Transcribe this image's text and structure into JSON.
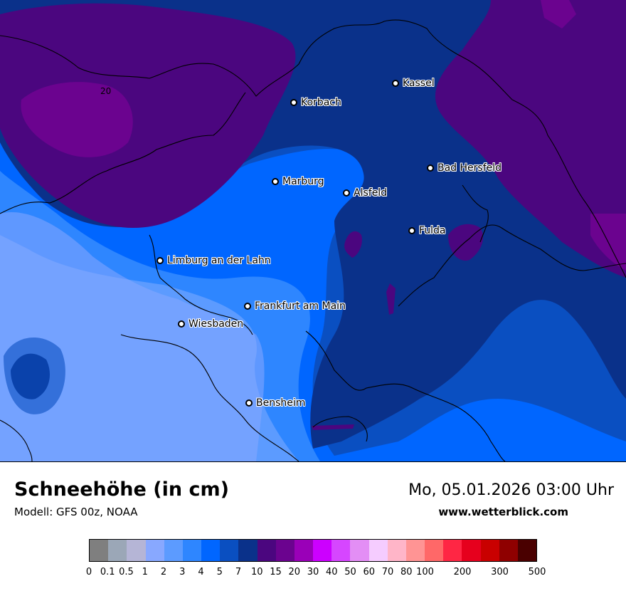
{
  "title": "Schneehöhe (in cm)",
  "model": "Modell: GFS 00z, NOAA",
  "datetime": "Mo, 05.01.2026 03:00 Uhr",
  "website": "www.wetterblick.com",
  "contour_label": "20",
  "cities": [
    {
      "name": "Kassel"
    },
    {
      "name": "Korbach"
    },
    {
      "name": "Bad Hersfeld"
    },
    {
      "name": "Marburg"
    },
    {
      "name": "Alsfeld"
    },
    {
      "name": "Fulda"
    },
    {
      "name": "Limburg an der Lahn"
    },
    {
      "name": "Frankfurt am Main"
    },
    {
      "name": "Wiesbaden"
    },
    {
      "name": "Bensheim"
    }
  ],
  "legend": {
    "colors": [
      "#7f7f7f",
      "#9ba7b7",
      "#b5b5d6",
      "#88a8ff",
      "#5c9bff",
      "#2e86ff",
      "#0066ff",
      "#0a4fc1",
      "#0a318a",
      "#4b067f",
      "#6b038f",
      "#9a00b8",
      "#cc00ff",
      "#d646ff",
      "#e38ef5",
      "#f5ccff",
      "#ffb5c8",
      "#ff9494",
      "#ff6868",
      "#ff2644",
      "#e6001d",
      "#c90000",
      "#8f0000",
      "#4a0000"
    ],
    "ticks": [
      "0",
      "0.1",
      "0.5",
      "1",
      "2",
      "3",
      "4",
      "5",
      "7",
      "10",
      "15",
      "20",
      "30",
      "40",
      "50",
      "60",
      "70",
      "80",
      "100",
      "200",
      "300",
      "500"
    ]
  }
}
